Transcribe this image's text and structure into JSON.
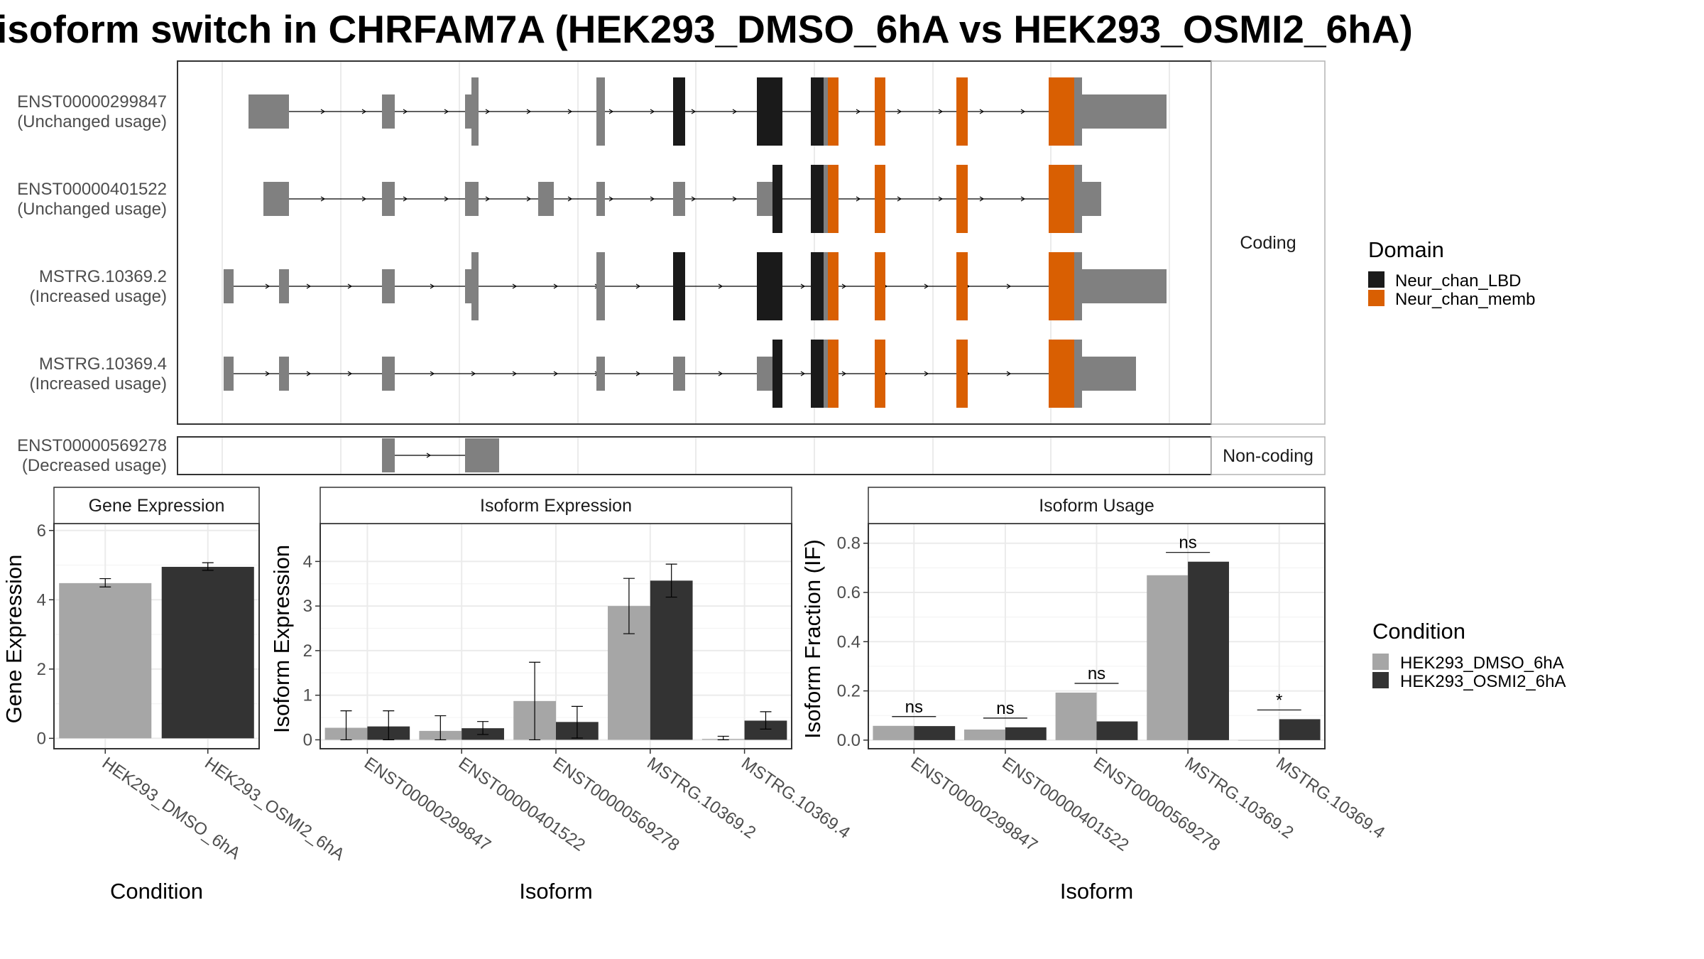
{
  "title": "isoform switch in CHRFAM7A (HEK293_DMSO_6hA vs HEK293_OSMI2_6hA)",
  "colors": {
    "dmso": "#a6a6a6",
    "osmi": "#333333",
    "exon": "#808080",
    "Neur_chan_LBD": "#1a1a1a",
    "Neur_chan_memb": "#d95f02",
    "grid": "#ebebeb",
    "panel_border": "#333333",
    "strip_fill": "#ffffff"
  },
  "structure": {
    "facets": [
      "Coding",
      "Non-coding"
    ],
    "legend_title": "Domain",
    "legend_items": [
      {
        "label": "Neur_chan_LBD",
        "color_key": "Neur_chan_LBD"
      },
      {
        "label": "Neur_chan_memb",
        "color_key": "Neur_chan_memb"
      }
    ],
    "transcripts": [
      {
        "id": "ENST00000299847",
        "status": "(Unchanged usage)",
        "facet": "Coding"
      },
      {
        "id": "ENST00000401522",
        "status": "(Unchanged usage)",
        "facet": "Coding"
      },
      {
        "id": "MSTRG.10369.2",
        "status": "(Increased usage)",
        "facet": "Coding"
      },
      {
        "id": "MSTRG.10369.4",
        "status": "(Increased usage)",
        "facet": "Coding"
      },
      {
        "id": "ENST00000569278",
        "status": "(Decreased usage)",
        "facet": "Non-coding"
      }
    ]
  },
  "chart_data": [
    {
      "type": "bar",
      "title": "Gene Expression",
      "xlabel": "Condition",
      "ylabel": "Gene Expression",
      "categories": [
        "HEK293_DMSO_6hA",
        "HEK293_OSMI2_6hA"
      ],
      "values": [
        4.48,
        4.95
      ],
      "error_low": [
        4.37,
        4.85
      ],
      "error_high": [
        4.61,
        5.07
      ],
      "ylim": [
        -0.3,
        6.2
      ],
      "yticks": [
        0,
        2,
        4,
        6
      ]
    },
    {
      "type": "bar",
      "title": "Isoform Expression",
      "xlabel": "Isoform",
      "ylabel": "Isoform Expression",
      "categories": [
        "ENST00000299847",
        "ENST00000401522",
        "ENST00000569278",
        "MSTRG.10369.2",
        "MSTRG.10369.4"
      ],
      "series": [
        {
          "name": "HEK293_DMSO_6hA",
          "values": [
            0.27,
            0.2,
            0.87,
            3.0,
            0.02
          ],
          "error_low": [
            0.0,
            0.0,
            0.0,
            2.38,
            0.0
          ],
          "error_high": [
            0.65,
            0.54,
            1.74,
            3.62,
            0.08
          ]
        },
        {
          "name": "HEK293_OSMI2_6hA",
          "values": [
            0.3,
            0.26,
            0.4,
            3.57,
            0.43
          ],
          "error_low": [
            0.0,
            0.12,
            0.04,
            3.2,
            0.24
          ],
          "error_high": [
            0.65,
            0.41,
            0.75,
            3.94,
            0.63
          ]
        }
      ],
      "ylim": [
        -0.2,
        4.85
      ],
      "yticks": [
        0,
        1,
        2,
        3,
        4
      ]
    },
    {
      "type": "bar",
      "title": "Isoform Usage",
      "xlabel": "Isoform",
      "ylabel": "Isoform Fraction (IF)",
      "categories": [
        "ENST00000299847",
        "ENST00000401522",
        "ENST00000569278",
        "MSTRG.10369.2",
        "MSTRG.10369.4"
      ],
      "series": [
        {
          "name": "HEK293_DMSO_6hA",
          "values": [
            0.058,
            0.043,
            0.193,
            0.67,
            0.0
          ]
        },
        {
          "name": "HEK293_OSMI2_6hA",
          "values": [
            0.057,
            0.052,
            0.076,
            0.725,
            0.085
          ]
        }
      ],
      "significance": [
        "ns",
        "ns",
        "ns",
        "ns",
        "*"
      ],
      "ylim": [
        -0.035,
        0.88
      ],
      "yticks": [
        0.0,
        0.2,
        0.4,
        0.6,
        0.8
      ],
      "ytick_labels": [
        "0.0",
        "0.2",
        "0.4",
        "0.6",
        "0.8"
      ]
    }
  ],
  "condition_legend": {
    "title": "Condition",
    "items": [
      {
        "label": "HEK293_DMSO_6hA",
        "color_key": "dmso"
      },
      {
        "label": "HEK293_OSMI2_6hA",
        "color_key": "osmi"
      }
    ]
  }
}
